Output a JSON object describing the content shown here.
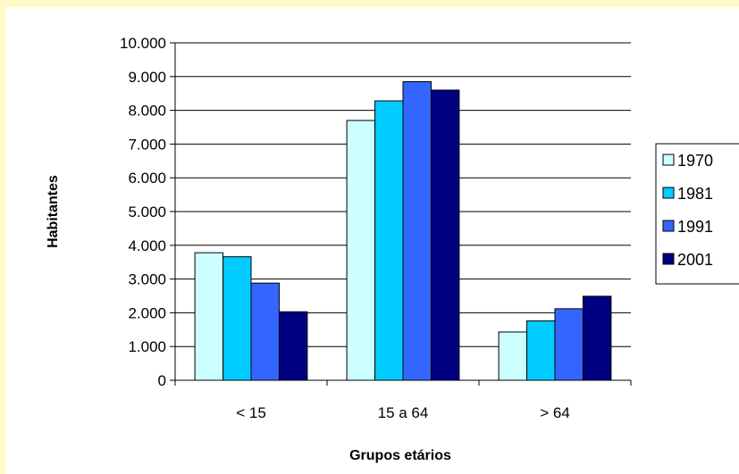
{
  "chart_data": {
    "type": "bar",
    "xlabel": "Grupos etários",
    "ylabel": "Habitantes",
    "ylim": [
      0,
      10000
    ],
    "yticks": [
      0,
      1000,
      2000,
      3000,
      4000,
      5000,
      6000,
      7000,
      8000,
      9000,
      10000
    ],
    "ytick_labels": [
      "0",
      "1.000",
      "2.000",
      "3.000",
      "4.000",
      "5.000",
      "6.000",
      "7.000",
      "8.000",
      "9.000",
      "10.000"
    ],
    "categories": [
      "< 15",
      "15 a 64",
      "> 64"
    ],
    "series": [
      {
        "name": "1970",
        "color": "#ccffff",
        "values": [
          3780,
          7700,
          1430
        ]
      },
      {
        "name": "1981",
        "color": "#00ccff",
        "values": [
          3660,
          8280,
          1760
        ]
      },
      {
        "name": "1991",
        "color": "#3366ff",
        "values": [
          2880,
          8850,
          2120
        ]
      },
      {
        "name": "2001",
        "color": "#000080",
        "values": [
          2030,
          8600,
          2490
        ]
      }
    ],
    "grid": true,
    "legend_position": "right"
  }
}
